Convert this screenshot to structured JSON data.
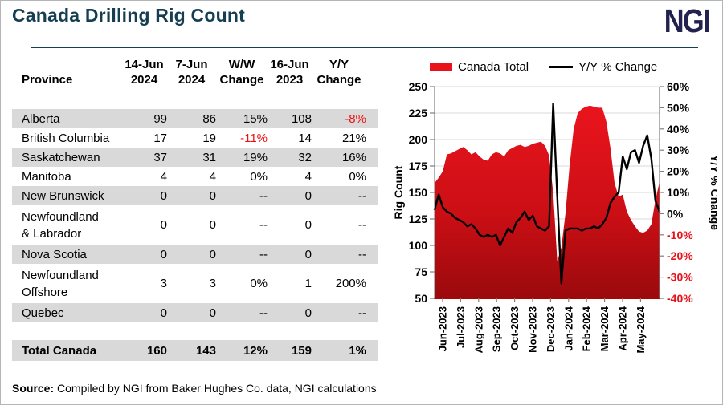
{
  "header": {
    "title": "Canada Drilling Rig Count",
    "logo": "NGI"
  },
  "table": {
    "col_headers": [
      "Province",
      "14-Jun\n2024",
      "7-Jun\n2024",
      "W/W\nChange",
      "16-Jun\n2023",
      "Y/Y\nChange"
    ],
    "rows": [
      {
        "province": "Alberta",
        "values": [
          "99",
          "86",
          "15%",
          "108",
          "-8%"
        ],
        "shaded": true,
        "tall": false
      },
      {
        "province": "British Columbia",
        "values": [
          "17",
          "19",
          "-11%",
          "14",
          "21%"
        ],
        "shaded": false,
        "tall": false
      },
      {
        "province": "Saskatchewan",
        "values": [
          "37",
          "31",
          "19%",
          "32",
          "16%"
        ],
        "shaded": true,
        "tall": false
      },
      {
        "province": "Manitoba",
        "values": [
          "4",
          "4",
          "0%",
          "4",
          "0%"
        ],
        "shaded": false,
        "tall": false
      },
      {
        "province": "New Brunswick",
        "values": [
          "0",
          "0",
          "--",
          "0",
          "--"
        ],
        "shaded": true,
        "tall": false
      },
      {
        "province": "Newfoundland\n& Labrador",
        "values": [
          "0",
          "0",
          "--",
          "0",
          "--"
        ],
        "shaded": false,
        "tall": true
      },
      {
        "province": "Nova Scotia",
        "values": [
          "0",
          "0",
          "--",
          "0",
          "--"
        ],
        "shaded": true,
        "tall": false
      },
      {
        "province": "Newfoundland\nOffshore",
        "values": [
          "3",
          "3",
          "0%",
          "1",
          "200%"
        ],
        "shaded": false,
        "tall": true
      },
      {
        "province": "Quebec",
        "values": [
          "0",
          "0",
          "--",
          "0",
          "--"
        ],
        "shaded": true,
        "tall": false
      }
    ],
    "total_row": {
      "province": "Total Canada",
      "values": [
        "160",
        "143",
        "12%",
        "159",
        "1%"
      ],
      "shaded": true
    }
  },
  "source": {
    "label": "Source:",
    "text": "Compiled by NGI from Baker Hughes Co. data, NGI calculations"
  },
  "chart_data": {
    "type": "area+line",
    "x_labels": [
      "Jun-2023",
      "Jul-2023",
      "Aug-2023",
      "Sep-2023",
      "Oct-2023",
      "Nov-2023",
      "Dec-2023",
      "Jan-2024",
      "Feb-2024",
      "Mar-2024",
      "Apr-2024",
      "May-2024"
    ],
    "x_note": "weekly data from Jun-2023 through 14-Jun-2024",
    "ylabel_left": "Rig Count",
    "ylim_left": [
      50,
      250
    ],
    "ytick_step_left": 25,
    "ylabel_right": "Y/Y % Change",
    "ylim_right": [
      -40,
      60
    ],
    "ytick_step_right": 10,
    "grid": true,
    "legend_position": "top",
    "legend": [
      {
        "label": "Canada Total",
        "color": "#e8121b",
        "kind": "area"
      },
      {
        "label": "Y/Y % Change",
        "color": "#000000",
        "kind": "line"
      }
    ],
    "series": [
      {
        "name": "Canada Total",
        "type": "area",
        "axis": "left",
        "values": [
          159,
          164,
          170,
          186,
          187,
          189,
          191,
          193,
          190,
          186,
          188,
          184,
          181,
          180,
          186,
          188,
          187,
          184,
          190,
          192,
          194,
          195,
          193,
          194,
          196,
          197,
          198,
          194,
          185,
          150,
          85,
          98,
          130,
          175,
          210,
          225,
          229,
          231,
          232,
          231,
          230,
          230,
          217,
          192,
          159,
          146,
          148,
          132,
          124,
          118,
          113,
          112,
          114,
          120,
          143,
          160
        ]
      },
      {
        "name": "Y/Y % Change",
        "type": "line",
        "axis": "right",
        "values": [
          2,
          9,
          3,
          1,
          0,
          -2,
          -3,
          -4,
          -6,
          -5,
          -7,
          -10,
          -11,
          -10,
          -11,
          -10,
          -15,
          -11,
          -7,
          -9,
          -4,
          -2,
          1,
          -3,
          -1,
          -6,
          -7,
          -8,
          -6,
          52,
          8,
          -33,
          -8,
          -7,
          -7,
          -7,
          -8,
          -7,
          -7,
          -6,
          -7,
          -5,
          -2,
          5,
          8,
          10,
          27,
          21,
          29,
          30,
          24,
          32,
          37,
          26,
          6,
          1
        ]
      }
    ],
    "colors": {
      "area_top": "#ea141d",
      "area_mid": "#cc0f15",
      "area_bottom": "#9a0a0d",
      "line": "#000000",
      "grid": "#d9d9d9",
      "axis": "#7f7f7f",
      "bottom_axis": "#b30000",
      "neg_tick": "#e8121a"
    }
  }
}
